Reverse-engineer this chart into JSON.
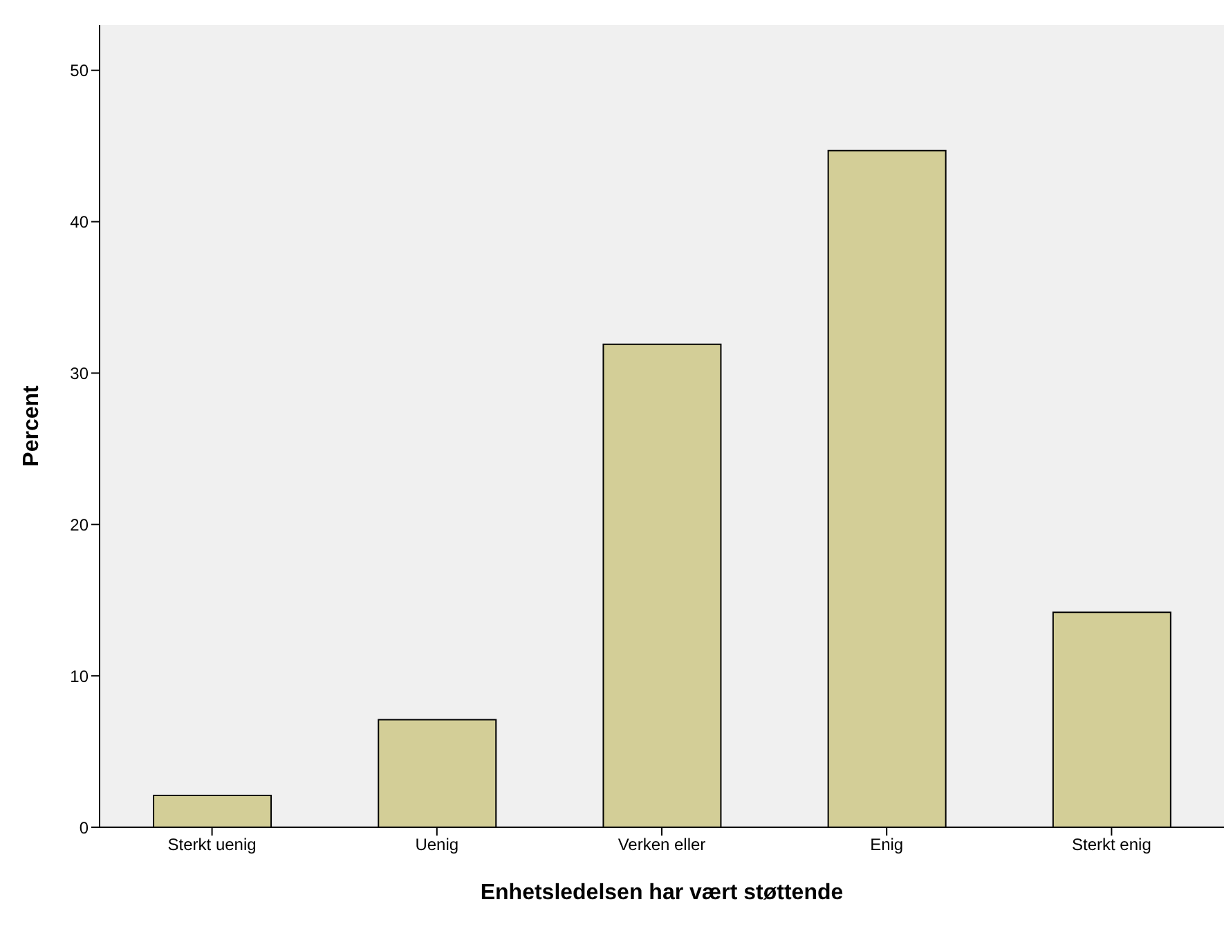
{
  "chart_data": {
    "type": "bar",
    "categories": [
      "Sterkt uenig",
      "Uenig",
      "Verken eller",
      "Enig",
      "Sterkt enig"
    ],
    "values": [
      2.1,
      7.1,
      31.9,
      44.7,
      14.2
    ],
    "color": "#d3ce97",
    "xlabel": "Enhetsledelsen har vært støttende",
    "ylabel": "Percent",
    "ylim": [
      0,
      53
    ],
    "yticks": [
      0,
      10,
      20,
      30,
      40,
      50
    ],
    "grid": false,
    "legend": false
  }
}
